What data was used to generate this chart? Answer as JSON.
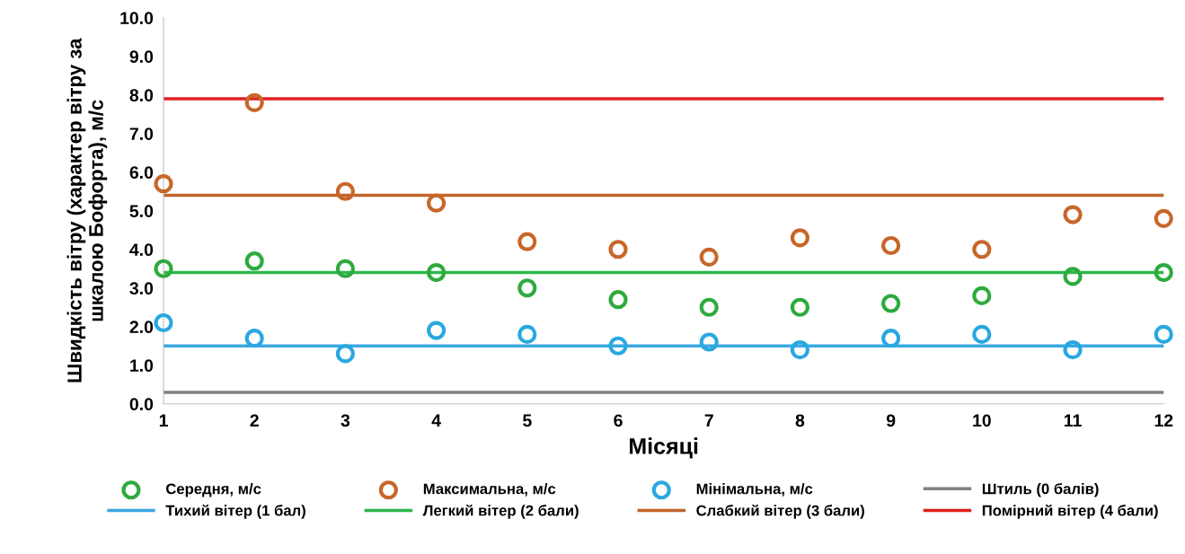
{
  "chart_data": {
    "type": "scatter",
    "xlabel": "Місяці",
    "ylabel": "Швидкість вітру (характер вітру за\nшкалою Бофорта), м/с",
    "x": [
      1,
      2,
      3,
      4,
      5,
      6,
      7,
      8,
      9,
      10,
      11,
      12
    ],
    "xlim": [
      1,
      12
    ],
    "xticks": [
      1,
      2,
      3,
      4,
      5,
      6,
      7,
      8,
      9,
      10,
      11,
      12
    ],
    "ylim": [
      0,
      10
    ],
    "yticks": [
      {
        "value": 0,
        "label": "0.0"
      },
      {
        "value": 1,
        "label": "1.0"
      },
      {
        "value": 2,
        "label": "2.0"
      },
      {
        "value": 3,
        "label": "3.0"
      },
      {
        "value": 4,
        "label": "4.0"
      },
      {
        "value": 5,
        "label": "5.0"
      },
      {
        "value": 6,
        "label": "6.0"
      },
      {
        "value": 7,
        "label": "7.0"
      },
      {
        "value": 8,
        "label": "8.0"
      },
      {
        "value": 9,
        "label": "9.0"
      },
      {
        "value": 10,
        "label": "10.0"
      }
    ],
    "grid": false,
    "legend": "bottom",
    "series": [
      {
        "name": "Середня, м/с",
        "marker": "circle",
        "color": "#2eaa3e",
        "values": [
          3.5,
          3.7,
          3.5,
          3.4,
          3.0,
          2.7,
          2.5,
          2.5,
          2.6,
          2.8,
          3.3,
          3.4
        ]
      },
      {
        "name": "Максимальна, м/с",
        "marker": "circle",
        "color": "#c8662a",
        "values": [
          5.7,
          7.8,
          5.5,
          5.2,
          4.2,
          4.0,
          3.8,
          4.3,
          4.1,
          4.0,
          4.9,
          4.8
        ]
      },
      {
        "name": "Мінімальна, м/с",
        "marker": "circle",
        "color": "#29a8e0",
        "values": [
          2.1,
          1.7,
          1.3,
          1.9,
          1.8,
          1.5,
          1.6,
          1.4,
          1.7,
          1.8,
          1.4,
          1.8
        ]
      },
      {
        "name": "Штиль (0 балів)",
        "type": "line",
        "color": "#808080",
        "values": [
          0.3,
          0.3,
          0.3,
          0.3,
          0.3,
          0.3,
          0.3,
          0.3,
          0.3,
          0.3,
          0.3,
          0.3
        ]
      },
      {
        "name": "Тихий вітер (1 бал)",
        "type": "line",
        "color": "#3aa8e0",
        "values": [
          1.5,
          1.5,
          1.5,
          1.5,
          1.5,
          1.5,
          1.5,
          1.5,
          1.5,
          1.5,
          1.5,
          1.5
        ]
      },
      {
        "name": "Легкий вітер (2 бали)",
        "type": "line",
        "color": "#2eb84a",
        "values": [
          3.4,
          3.4,
          3.4,
          3.4,
          3.4,
          3.4,
          3.4,
          3.4,
          3.4,
          3.4,
          3.4,
          3.4
        ]
      },
      {
        "name": "Слабкий вітер (3 бали)",
        "type": "line",
        "color": "#c0652a",
        "values": [
          5.4,
          5.4,
          5.4,
          5.4,
          5.4,
          5.4,
          5.4,
          5.4,
          5.4,
          5.4,
          5.4,
          5.4
        ]
      },
      {
        "name": "Помірний вітер (4 бали)",
        "type": "line",
        "color": "#e02020",
        "values": [
          7.9,
          7.9,
          7.9,
          7.9,
          7.9,
          7.9,
          7.9,
          7.9,
          7.9,
          7.9,
          7.9,
          7.9
        ]
      }
    ]
  }
}
